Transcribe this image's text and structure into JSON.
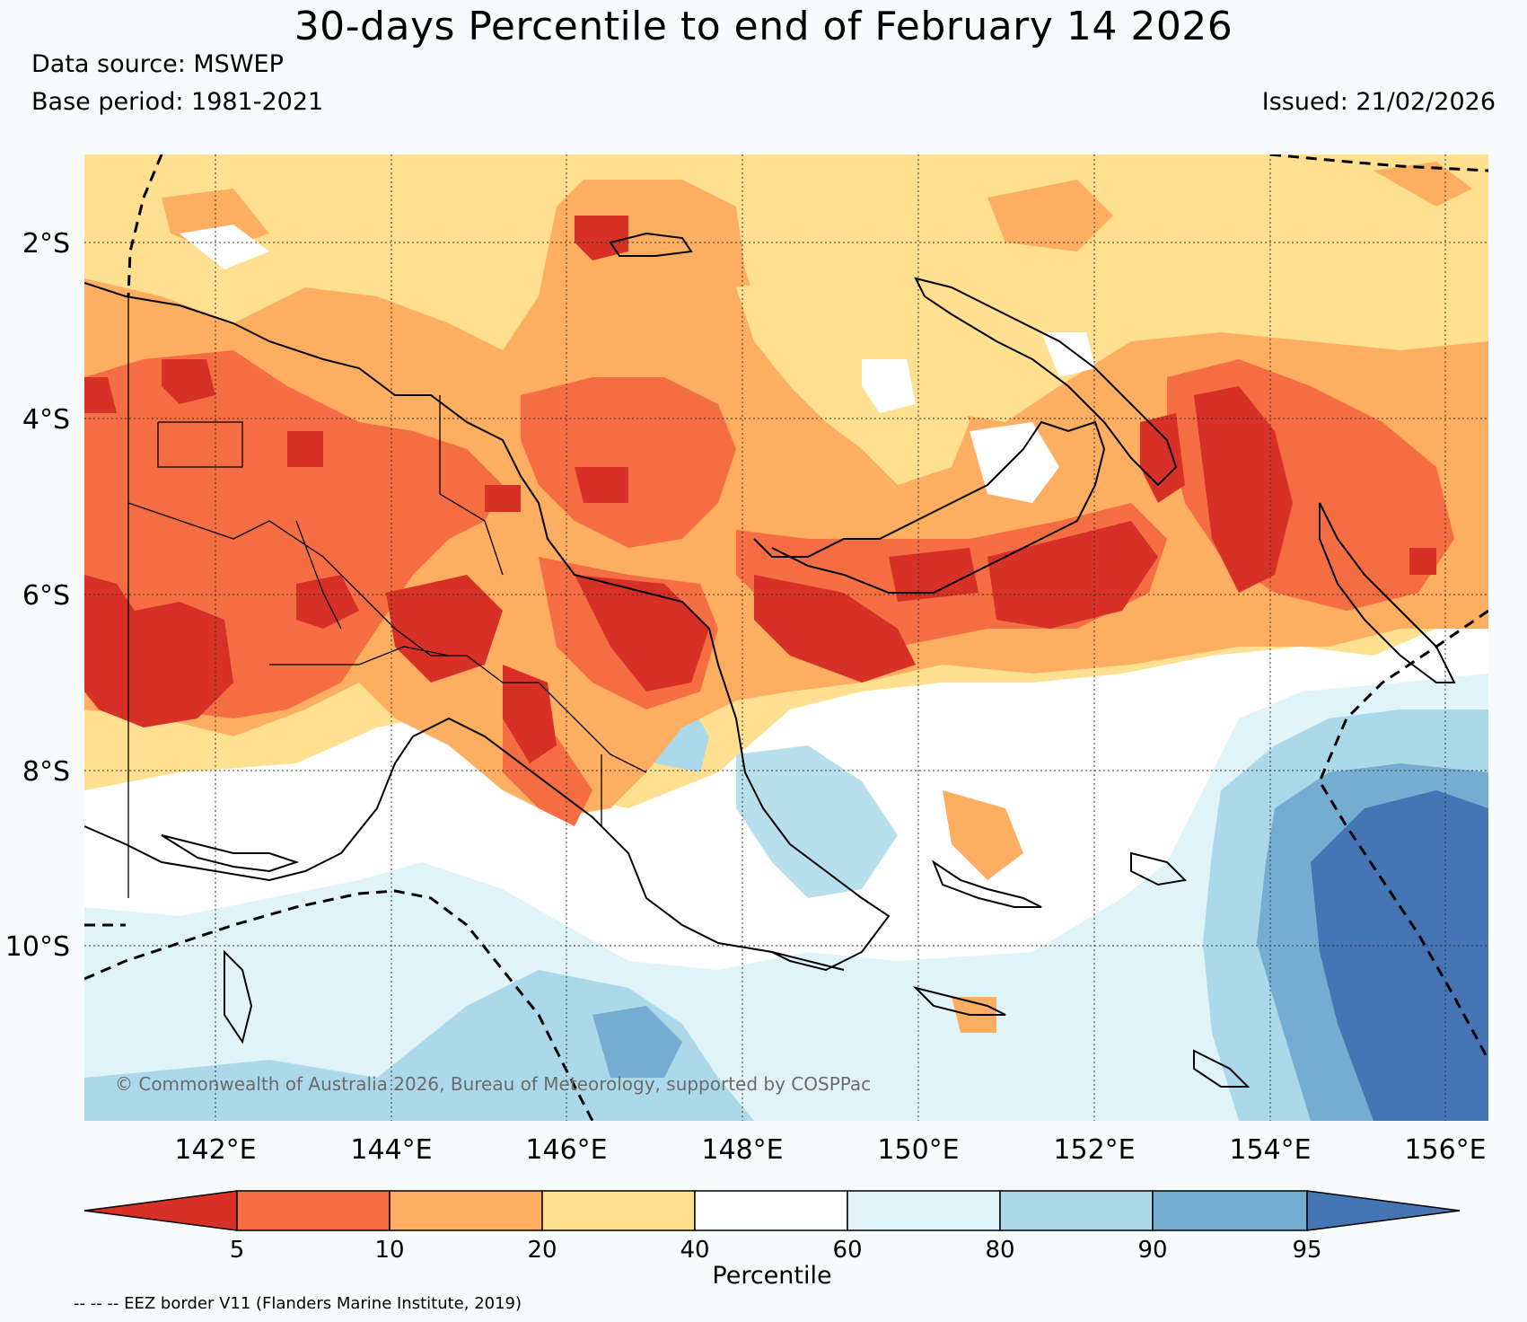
{
  "title": "30-days Percentile to end of February 14 2026",
  "data_source": "Data source: MSWEP",
  "base_period": "Base period: 1981-2021",
  "issued": "Issued: 21/02/2026",
  "copyright": "© Commonwealth of Australia 2026, Bureau of Meteorology, supported by COSPPac",
  "footer_note": "-- -- -- EEZ border V11 (Flanders Marine Institute, 2019)",
  "map": {
    "lon_range": [
      140.3,
      156.3
    ],
    "lat_range": [
      -1.0,
      -12.0
    ],
    "lat_ticks": [
      -2,
      -4,
      -6,
      -8,
      -10
    ],
    "lat_labels": [
      "2°S",
      "4°S",
      "6°S",
      "8°S",
      "10°S"
    ],
    "lon_ticks": [
      142,
      144,
      146,
      148,
      150,
      152,
      154,
      156
    ],
    "lon_labels": [
      "142°E",
      "144°E",
      "146°E",
      "148°E",
      "150°E",
      "152°E",
      "154°E",
      "156°E"
    ]
  },
  "colorbar": {
    "title": "Percentile",
    "ticks": [
      "5",
      "10",
      "20",
      "40",
      "60",
      "80",
      "90",
      "95"
    ],
    "colors": {
      "below_5": "#d73027",
      "5_10": "#f46d43",
      "10_20": "#fdae61",
      "20_40": "#fee090",
      "40_60": "#ffffff",
      "60_80": "#e0f3f8",
      "80_90": "#abd9e9",
      "90_95": "#74add1",
      "above_95": "#4575b4"
    }
  }
}
